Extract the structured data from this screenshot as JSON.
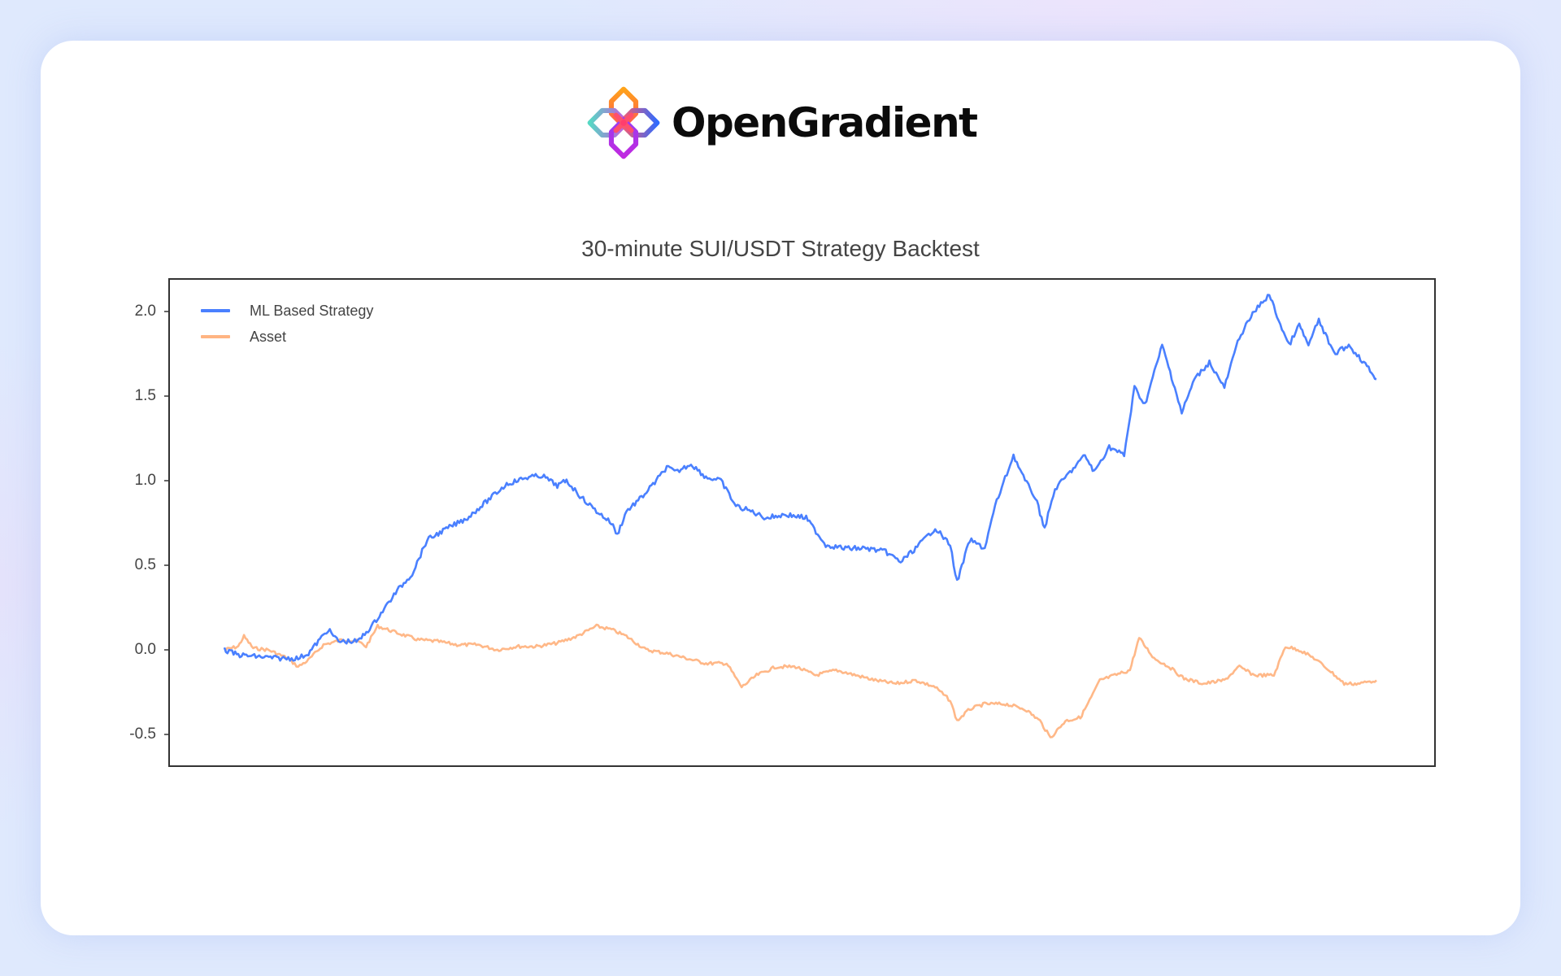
{
  "brand": {
    "name": "OpenGradient",
    "icon": "opengradient-logo-icon",
    "icon_colors": [
      "#ff9f1c",
      "#5ad7c6",
      "#2f6bff",
      "#b32ee6",
      "#ff4f6d"
    ]
  },
  "chart_data": {
    "type": "line",
    "title": "30-minute SUI/USDT Strategy Backtest",
    "xlabel": "",
    "ylabel": "",
    "x_note": "no x-axis tick labels shown; x is normalized time progress 0-100",
    "xlim": [
      0,
      100
    ],
    "ylim": [
      -0.68,
      2.24
    ],
    "yticks": [
      -0.5,
      0.0,
      0.5,
      1.0,
      1.5,
      2.0
    ],
    "ytick_labels": [
      "-0.5",
      "0.0",
      "0.5",
      "1.0",
      "1.5",
      "2.0"
    ],
    "grid": false,
    "legend_position": "upper left",
    "series": [
      {
        "name": "ML Based Strategy",
        "color": "#4a80ff",
        "x": [
          0,
          1.2,
          4.7,
          6.4,
          7.3,
          9.0,
          9.9,
          11.6,
          12.9,
          15.0,
          16.3,
          17.6,
          19.4,
          21.1,
          22.8,
          24.5,
          26.3,
          27.6,
          28.9,
          29.7,
          31.0,
          32.3,
          33.6,
          34.1,
          34.9,
          36.2,
          37.5,
          38.4,
          39.2,
          40.5,
          41.8,
          43.1,
          44.4,
          45.7,
          47.0,
          48.7,
          50.5,
          52.2,
          53.9,
          55.7,
          57.4,
          58.7,
          60.0,
          61.7,
          63.0,
          63.6,
          64.7,
          66.0,
          66.9,
          68.5,
          69.5,
          70.4,
          71.2,
          72.1,
          73.4,
          74.7,
          75.5,
          76.8,
          78.1,
          79.0,
          79.9,
          81.4,
          82.5,
          83.1,
          84.2,
          85.5,
          86.8,
          88.1,
          89.4,
          90.7,
          91.5,
          92.4,
          93.3,
          94.1,
          95.0,
          96.3,
          97.6,
          98.9,
          100
        ],
        "values": [
          0.0,
          -0.03,
          -0.05,
          -0.05,
          -0.02,
          0.12,
          0.05,
          0.05,
          0.15,
          0.35,
          0.45,
          0.65,
          0.72,
          0.78,
          0.88,
          0.98,
          1.02,
          1.03,
          0.97,
          1.0,
          0.9,
          0.82,
          0.75,
          0.68,
          0.82,
          0.9,
          1.0,
          1.08,
          1.05,
          1.1,
          1.02,
          1.0,
          0.85,
          0.82,
          0.78,
          0.8,
          0.78,
          0.62,
          0.6,
          0.6,
          0.58,
          0.52,
          0.6,
          0.72,
          0.62,
          0.4,
          0.65,
          0.6,
          0.85,
          1.15,
          1.0,
          0.9,
          0.72,
          0.95,
          1.05,
          1.15,
          1.05,
          1.2,
          1.15,
          1.55,
          1.45,
          1.8,
          1.55,
          1.4,
          1.6,
          1.7,
          1.55,
          1.85,
          2.0,
          2.1,
          1.95,
          1.8,
          1.92,
          1.8,
          1.95,
          1.75,
          1.8,
          1.7,
          1.6
        ]
      },
      {
        "name": "Asset",
        "color": "#ffb482",
        "x": [
          0,
          1.2,
          1.7,
          2.5,
          3.8,
          5.5,
          6.4,
          7.3,
          8.6,
          10.3,
          11.6,
          12.3,
          13.3,
          15.0,
          16.8,
          18.5,
          20.2,
          22.0,
          23.7,
          25.4,
          27.1,
          28.9,
          30.6,
          32.3,
          33.6,
          34.9,
          36.6,
          38.4,
          40.1,
          41.8,
          43.6,
          44.9,
          46.2,
          47.9,
          49.6,
          51.3,
          53.1,
          54.8,
          56.5,
          58.3,
          60.0,
          61.7,
          63.0,
          63.6,
          64.7,
          66.0,
          67.8,
          69.5,
          70.8,
          71.7,
          73.0,
          74.3,
          75.1,
          76.0,
          77.3,
          78.6,
          79.4,
          80.7,
          82.0,
          83.3,
          85.0,
          86.8,
          88.1,
          89.4,
          91.1,
          92.1,
          93.3,
          94.6,
          95.9,
          97.2,
          98.4,
          100
        ],
        "values": [
          0.0,
          0.02,
          0.08,
          0.01,
          0.0,
          -0.05,
          -0.1,
          -0.06,
          0.03,
          0.06,
          0.05,
          0.02,
          0.14,
          0.1,
          0.06,
          0.05,
          0.03,
          0.03,
          0.0,
          0.02,
          0.02,
          0.04,
          0.08,
          0.14,
          0.12,
          0.08,
          0.0,
          -0.02,
          -0.05,
          -0.08,
          -0.08,
          -0.22,
          -0.15,
          -0.1,
          -0.1,
          -0.15,
          -0.12,
          -0.15,
          -0.18,
          -0.2,
          -0.18,
          -0.22,
          -0.3,
          -0.42,
          -0.35,
          -0.32,
          -0.32,
          -0.35,
          -0.42,
          -0.52,
          -0.42,
          -0.4,
          -0.3,
          -0.18,
          -0.15,
          -0.12,
          0.07,
          -0.05,
          -0.1,
          -0.17,
          -0.2,
          -0.18,
          -0.1,
          -0.15,
          -0.15,
          0.02,
          0.0,
          -0.05,
          -0.12,
          -0.2,
          -0.2,
          -0.18
        ]
      }
    ]
  }
}
